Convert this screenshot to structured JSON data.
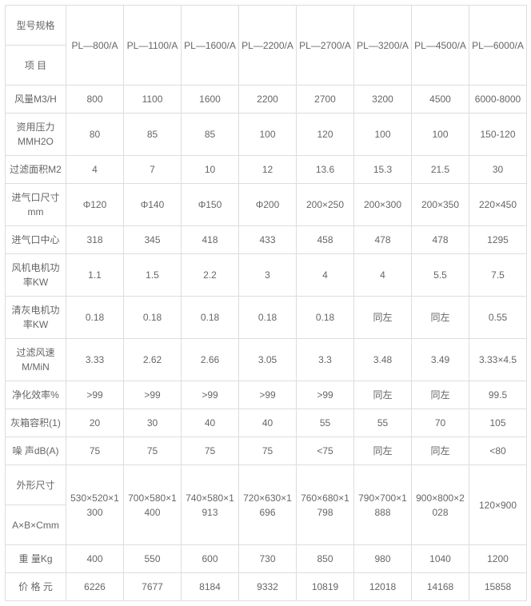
{
  "table": {
    "type": "table",
    "background_color": "#ffffff",
    "border_color": "#dddddd",
    "text_color": "#666666",
    "font_size": 12,
    "header_top": "型号规格",
    "header_bottom": "项 目",
    "columns": [
      "PL—800/A",
      "PL—1100/A",
      "PL—1600/A",
      "PL—2200/A",
      "PL—2700/A",
      "PL—3200/A",
      "PL—4500/A",
      "PL—6000/A"
    ],
    "rows": [
      {
        "label": "风量M3/H",
        "values": [
          "800",
          "1100",
          "1600",
          "2200",
          "2700",
          "3200",
          "4500",
          "6000-8000"
        ]
      },
      {
        "label": "资用压力MMH2O",
        "values": [
          "80",
          "85",
          "85",
          "100",
          "120",
          "100",
          "100",
          "150-120"
        ]
      },
      {
        "label": "过滤面积M2",
        "values": [
          "4",
          "7",
          "10",
          "12",
          "13.6",
          "15.3",
          "21.5",
          "30"
        ]
      },
      {
        "label": "进气口尺寸mm",
        "values": [
          "Φ120",
          "Φ140",
          "Φ150",
          "Φ200",
          "200×250",
          "200×300",
          "200×350",
          "220×450"
        ]
      },
      {
        "label": "进气口中心",
        "values": [
          "318",
          "345",
          "418",
          "433",
          "458",
          "478",
          "478",
          "1295"
        ]
      },
      {
        "label": "风机电机功率KW",
        "values": [
          "1.1",
          "1.5",
          "2.2",
          "3",
          "4",
          "4",
          "5.5",
          "7.5"
        ]
      },
      {
        "label": "清灰电机功率KW",
        "values": [
          "0.18",
          "0.18",
          "0.18",
          "0.18",
          "0.18",
          "同左",
          "同左",
          "0.55"
        ]
      },
      {
        "label": "过滤风速M/MiN",
        "values": [
          "3.33",
          "2.62",
          "2.66",
          "3.05",
          "3.3",
          "3.48",
          "3.49",
          "3.33×4.5"
        ]
      },
      {
        "label": "净化效率%",
        "values": [
          ">99",
          ">99",
          ">99",
          ">99",
          ">99",
          "同左",
          "同左",
          "99.5"
        ]
      },
      {
        "label": "灰箱容积(1)",
        "values": [
          "20",
          "30",
          "40",
          "40",
          "55",
          "55",
          "70",
          "105"
        ]
      },
      {
        "label": "噪 声dB(A)",
        "values": [
          "75",
          "75",
          "75",
          "75",
          "<75",
          "同左",
          "同左",
          "<80"
        ]
      }
    ],
    "dims_row": {
      "top_label": "外形尺寸",
      "bottom_label": "A×B×Cmm",
      "values": [
        "530×520×1300",
        "700×580×1400",
        "740×580×1913",
        "720×630×1696",
        "760×680×1798",
        "790×700×1888",
        "900×800×2028",
        "120×900"
      ]
    },
    "tail_rows": [
      {
        "label": "重 量Kg",
        "values": [
          "400",
          "550",
          "600",
          "730",
          "850",
          "980",
          "1040",
          "1200"
        ]
      },
      {
        "label": "价 格 元",
        "values": [
          "6226",
          "7677",
          "8184",
          "9332",
          "10819",
          "12018",
          "14168",
          "15858"
        ]
      }
    ]
  }
}
